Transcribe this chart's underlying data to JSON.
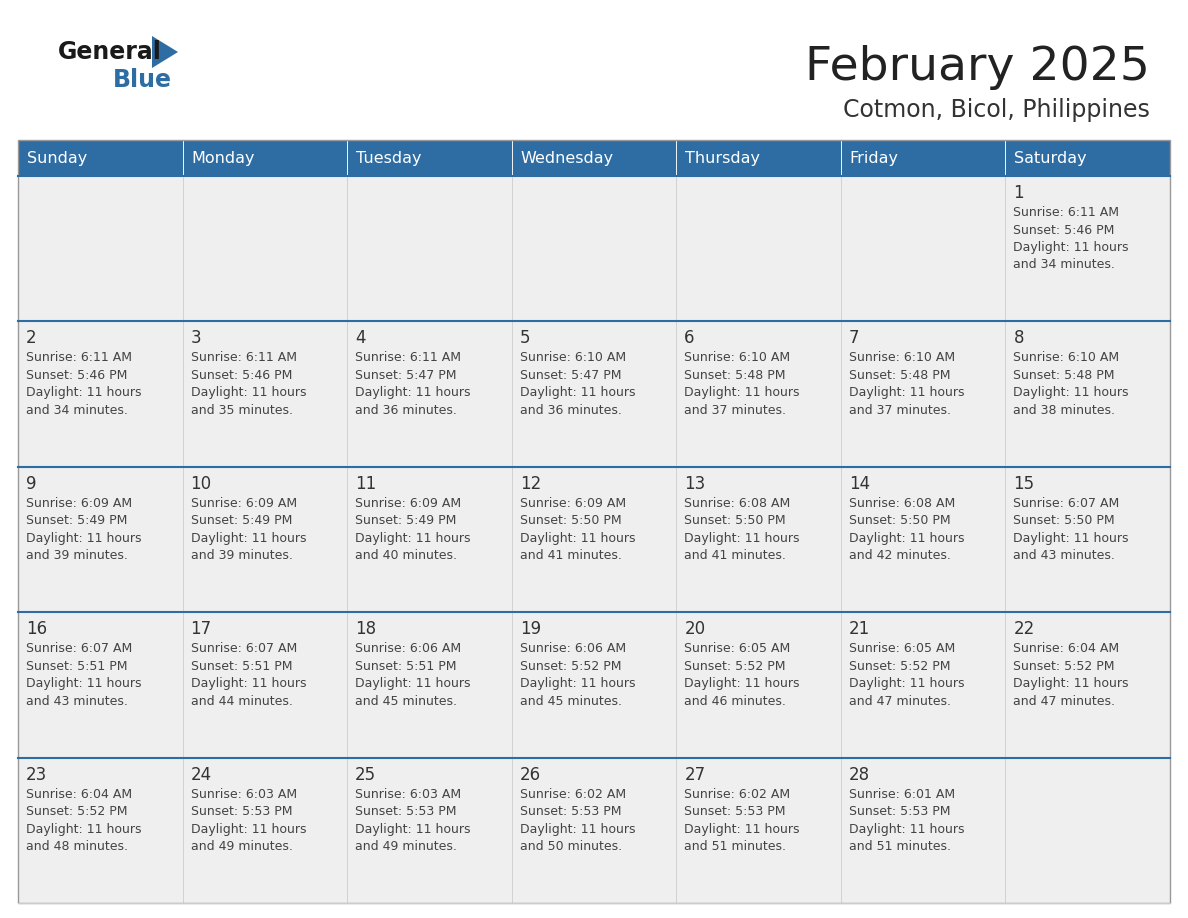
{
  "title": "February 2025",
  "subtitle": "Cotmon, Bicol, Philippines",
  "days_of_week": [
    "Sunday",
    "Monday",
    "Tuesday",
    "Wednesday",
    "Thursday",
    "Friday",
    "Saturday"
  ],
  "header_bg": "#2E6DA4",
  "header_text": "#FFFFFF",
  "cell_bg": "#EFEFEF",
  "day_number_color": "#333333",
  "info_text_color": "#444444",
  "row_separator_color": "#2E6DA4",
  "cell_border_color": "#CCCCCC",
  "outer_border_color": "#999999",
  "title_color": "#222222",
  "subtitle_color": "#333333",
  "logo_general_color": "#1a1a1a",
  "logo_blue_color": "#2E6DA4",
  "calendar_data": [
    [
      null,
      null,
      null,
      null,
      null,
      null,
      {
        "day": 1,
        "sunrise": "6:11 AM",
        "sunset": "5:46 PM",
        "daylight": "11 hours and 34 minutes."
      }
    ],
    [
      {
        "day": 2,
        "sunrise": "6:11 AM",
        "sunset": "5:46 PM",
        "daylight": "11 hours and 34 minutes."
      },
      {
        "day": 3,
        "sunrise": "6:11 AM",
        "sunset": "5:46 PM",
        "daylight": "11 hours and 35 minutes."
      },
      {
        "day": 4,
        "sunrise": "6:11 AM",
        "sunset": "5:47 PM",
        "daylight": "11 hours and 36 minutes."
      },
      {
        "day": 5,
        "sunrise": "6:10 AM",
        "sunset": "5:47 PM",
        "daylight": "11 hours and 36 minutes."
      },
      {
        "day": 6,
        "sunrise": "6:10 AM",
        "sunset": "5:48 PM",
        "daylight": "11 hours and 37 minutes."
      },
      {
        "day": 7,
        "sunrise": "6:10 AM",
        "sunset": "5:48 PM",
        "daylight": "11 hours and 37 minutes."
      },
      {
        "day": 8,
        "sunrise": "6:10 AM",
        "sunset": "5:48 PM",
        "daylight": "11 hours and 38 minutes."
      }
    ],
    [
      {
        "day": 9,
        "sunrise": "6:09 AM",
        "sunset": "5:49 PM",
        "daylight": "11 hours and 39 minutes."
      },
      {
        "day": 10,
        "sunrise": "6:09 AM",
        "sunset": "5:49 PM",
        "daylight": "11 hours and 39 minutes."
      },
      {
        "day": 11,
        "sunrise": "6:09 AM",
        "sunset": "5:49 PM",
        "daylight": "11 hours and 40 minutes."
      },
      {
        "day": 12,
        "sunrise": "6:09 AM",
        "sunset": "5:50 PM",
        "daylight": "11 hours and 41 minutes."
      },
      {
        "day": 13,
        "sunrise": "6:08 AM",
        "sunset": "5:50 PM",
        "daylight": "11 hours and 41 minutes."
      },
      {
        "day": 14,
        "sunrise": "6:08 AM",
        "sunset": "5:50 PM",
        "daylight": "11 hours and 42 minutes."
      },
      {
        "day": 15,
        "sunrise": "6:07 AM",
        "sunset": "5:50 PM",
        "daylight": "11 hours and 43 minutes."
      }
    ],
    [
      {
        "day": 16,
        "sunrise": "6:07 AM",
        "sunset": "5:51 PM",
        "daylight": "11 hours and 43 minutes."
      },
      {
        "day": 17,
        "sunrise": "6:07 AM",
        "sunset": "5:51 PM",
        "daylight": "11 hours and 44 minutes."
      },
      {
        "day": 18,
        "sunrise": "6:06 AM",
        "sunset": "5:51 PM",
        "daylight": "11 hours and 45 minutes."
      },
      {
        "day": 19,
        "sunrise": "6:06 AM",
        "sunset": "5:52 PM",
        "daylight": "11 hours and 45 minutes."
      },
      {
        "day": 20,
        "sunrise": "6:05 AM",
        "sunset": "5:52 PM",
        "daylight": "11 hours and 46 minutes."
      },
      {
        "day": 21,
        "sunrise": "6:05 AM",
        "sunset": "5:52 PM",
        "daylight": "11 hours and 47 minutes."
      },
      {
        "day": 22,
        "sunrise": "6:04 AM",
        "sunset": "5:52 PM",
        "daylight": "11 hours and 47 minutes."
      }
    ],
    [
      {
        "day": 23,
        "sunrise": "6:04 AM",
        "sunset": "5:52 PM",
        "daylight": "11 hours and 48 minutes."
      },
      {
        "day": 24,
        "sunrise": "6:03 AM",
        "sunset": "5:53 PM",
        "daylight": "11 hours and 49 minutes."
      },
      {
        "day": 25,
        "sunrise": "6:03 AM",
        "sunset": "5:53 PM",
        "daylight": "11 hours and 49 minutes."
      },
      {
        "day": 26,
        "sunrise": "6:02 AM",
        "sunset": "5:53 PM",
        "daylight": "11 hours and 50 minutes."
      },
      {
        "day": 27,
        "sunrise": "6:02 AM",
        "sunset": "5:53 PM",
        "daylight": "11 hours and 51 minutes."
      },
      {
        "day": 28,
        "sunrise": "6:01 AM",
        "sunset": "5:53 PM",
        "daylight": "11 hours and 51 minutes."
      },
      null
    ]
  ],
  "fig_width": 11.88,
  "fig_height": 9.18,
  "dpi": 100
}
